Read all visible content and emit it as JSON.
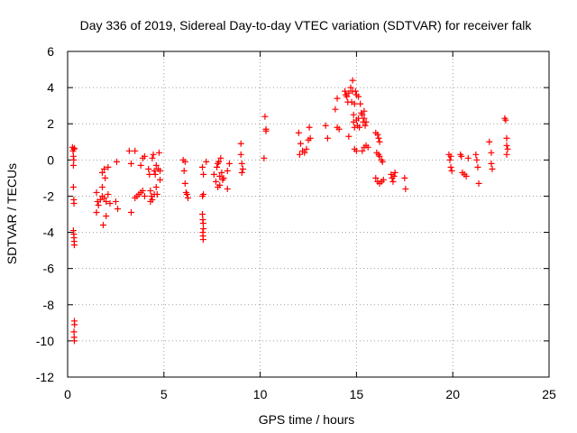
{
  "chart_data": {
    "type": "scatter",
    "title": "Day 336 of 2019, Sidereal Day-to-day VTEC variation (SDTVAR) for receiver falk",
    "xlabel": "GPS time / hours",
    "ylabel": "SDTVAR / TECUs",
    "xlim": [
      0,
      25
    ],
    "ylim": [
      -12,
      6
    ],
    "xticks": [
      0,
      5,
      10,
      15,
      20,
      25
    ],
    "yticks": [
      -12,
      -10,
      -8,
      -6,
      -4,
      -2,
      0,
      2,
      4,
      6
    ],
    "grid": true,
    "marker": "+",
    "marker_color": "#ff0000",
    "series": [
      {
        "name": "SDTVAR",
        "points": [
          [
            0.25,
            0.7
          ],
          [
            0.28,
            0.5
          ],
          [
            0.3,
            0.2
          ],
          [
            0.32,
            0.0
          ],
          [
            0.3,
            -0.3
          ],
          [
            0.33,
            0.6
          ],
          [
            0.35,
            0.65
          ],
          [
            0.3,
            -1.5
          ],
          [
            0.32,
            -2.2
          ],
          [
            0.33,
            -2.4
          ],
          [
            0.3,
            -3.9
          ],
          [
            0.32,
            -4.1
          ],
          [
            0.33,
            -4.3
          ],
          [
            0.34,
            -4.5
          ],
          [
            0.35,
            -4.7
          ],
          [
            0.35,
            -8.9
          ],
          [
            0.36,
            -9.1
          ],
          [
            0.33,
            -9.5
          ],
          [
            0.34,
            -9.8
          ],
          [
            0.35,
            -10.0
          ],
          [
            1.5,
            -1.8
          ],
          [
            1.55,
            -2.3
          ],
          [
            1.6,
            -2.5
          ],
          [
            1.5,
            -2.9
          ],
          [
            1.7,
            -2.2
          ],
          [
            1.8,
            -2.0
          ],
          [
            1.8,
            -1.5
          ],
          [
            1.8,
            -0.7
          ],
          [
            1.9,
            -0.5
          ],
          [
            1.95,
            -1.0
          ],
          [
            2.0,
            -2.3
          ],
          [
            1.9,
            -2.1
          ],
          [
            1.85,
            -3.6
          ],
          [
            2.0,
            -3.1
          ],
          [
            2.1,
            -1.9
          ],
          [
            2.1,
            -0.4
          ],
          [
            2.2,
            -2.4
          ],
          [
            2.5,
            -2.3
          ],
          [
            2.6,
            -2.7
          ],
          [
            2.55,
            -0.1
          ],
          [
            3.2,
            0.5
          ],
          [
            3.3,
            -0.2
          ],
          [
            3.5,
            0.5
          ],
          [
            3.3,
            -2.9
          ],
          [
            3.5,
            -2.1
          ],
          [
            3.6,
            -2.0
          ],
          [
            3.7,
            -1.9
          ],
          [
            3.8,
            -0.3
          ],
          [
            3.8,
            -1.8
          ],
          [
            3.9,
            0.1
          ],
          [
            3.9,
            -1.7
          ],
          [
            4.0,
            0.2
          ],
          [
            4.0,
            -2.0
          ],
          [
            4.2,
            -0.5
          ],
          [
            4.25,
            -0.8
          ],
          [
            4.3,
            -1.7
          ],
          [
            4.35,
            -2.0
          ],
          [
            4.4,
            -2.2
          ],
          [
            4.4,
            0.1
          ],
          [
            4.45,
            0.3
          ],
          [
            4.5,
            -0.6
          ],
          [
            4.55,
            -0.8
          ],
          [
            4.6,
            -1.5
          ],
          [
            4.65,
            -1.9
          ],
          [
            4.7,
            -0.5
          ],
          [
            4.75,
            0.4
          ],
          [
            4.8,
            -0.6
          ],
          [
            4.8,
            -1.1
          ],
          [
            4.3,
            -2.3
          ],
          [
            4.5,
            -1.9
          ],
          [
            4.6,
            -0.3
          ],
          [
            6.0,
            0.0
          ],
          [
            6.05,
            -0.6
          ],
          [
            6.1,
            -1.3
          ],
          [
            6.15,
            -1.8
          ],
          [
            6.2,
            -1.9
          ],
          [
            6.25,
            -2.1
          ],
          [
            6.1,
            -0.1
          ],
          [
            7.0,
            -0.4
          ],
          [
            7.05,
            -0.8
          ],
          [
            7.0,
            -2.0
          ],
          [
            7.05,
            -1.9
          ],
          [
            7.0,
            -3.0
          ],
          [
            7.02,
            -3.3
          ],
          [
            7.04,
            -3.5
          ],
          [
            7.05,
            -3.8
          ],
          [
            7.02,
            -4.0
          ],
          [
            7.03,
            -4.2
          ],
          [
            7.04,
            -4.4
          ],
          [
            7.2,
            -0.1
          ],
          [
            7.6,
            -0.8
          ],
          [
            7.7,
            -1.2
          ],
          [
            7.75,
            -0.4
          ],
          [
            7.8,
            -0.2
          ],
          [
            7.85,
            -0.1
          ],
          [
            7.9,
            -1.4
          ],
          [
            7.9,
            -0.9
          ],
          [
            7.95,
            0.1
          ],
          [
            8.0,
            -0.7
          ],
          [
            8.05,
            -1.1
          ],
          [
            8.1,
            -1.0
          ],
          [
            7.8,
            -1.5
          ],
          [
            8.3,
            -0.6
          ],
          [
            8.3,
            -1.6
          ],
          [
            8.4,
            -0.2
          ],
          [
            9.0,
            0.9
          ],
          [
            9.0,
            0.3
          ],
          [
            9.05,
            -0.2
          ],
          [
            9.1,
            -0.5
          ],
          [
            9.05,
            -0.7
          ],
          [
            10.25,
            2.4
          ],
          [
            10.3,
            1.7
          ],
          [
            10.3,
            1.6
          ],
          [
            10.2,
            0.1
          ],
          [
            12.0,
            1.5
          ],
          [
            12.1,
            0.9
          ],
          [
            12.05,
            0.3
          ],
          [
            12.2,
            0.5
          ],
          [
            12.3,
            0.4
          ],
          [
            12.4,
            0.6
          ],
          [
            12.5,
            1.1
          ],
          [
            12.6,
            1.2
          ],
          [
            12.55,
            1.8
          ],
          [
            13.4,
            1.9
          ],
          [
            13.5,
            1.2
          ],
          [
            13.9,
            2.8
          ],
          [
            14.0,
            3.4
          ],
          [
            14.1,
            1.7
          ],
          [
            14.0,
            1.8
          ],
          [
            14.4,
            3.8
          ],
          [
            14.45,
            3.6
          ],
          [
            14.5,
            3.5
          ],
          [
            14.55,
            3.2
          ],
          [
            14.6,
            3.7
          ],
          [
            14.6,
            1.3
          ],
          [
            14.7,
            4.0
          ],
          [
            14.75,
            3.2
          ],
          [
            14.8,
            4.4
          ],
          [
            14.8,
            3.8
          ],
          [
            14.85,
            2.5
          ],
          [
            14.85,
            2.1
          ],
          [
            14.9,
            3.1
          ],
          [
            14.9,
            1.8
          ],
          [
            14.95,
            3.8
          ],
          [
            15.0,
            3.6
          ],
          [
            15.0,
            2.2
          ],
          [
            15.05,
            1.9
          ],
          [
            15.1,
            3.5
          ],
          [
            15.1,
            2.3
          ],
          [
            15.15,
            1.8
          ],
          [
            15.2,
            3.1
          ],
          [
            15.25,
            2.6
          ],
          [
            15.3,
            2.5
          ],
          [
            15.35,
            2.1
          ],
          [
            15.4,
            2.7
          ],
          [
            15.4,
            2.3
          ],
          [
            15.45,
            1.9
          ],
          [
            15.5,
            2.1
          ],
          [
            14.9,
            0.6
          ],
          [
            15.0,
            0.5
          ],
          [
            15.3,
            0.5
          ],
          [
            15.4,
            0.7
          ],
          [
            15.5,
            0.8
          ],
          [
            15.6,
            0.7
          ],
          [
            16.0,
            1.5
          ],
          [
            16.1,
            1.4
          ],
          [
            16.15,
            1.2
          ],
          [
            16.2,
            1.0
          ],
          [
            16.05,
            0.4
          ],
          [
            16.15,
            0.3
          ],
          [
            16.2,
            0.2
          ],
          [
            16.3,
            0.0
          ],
          [
            16.35,
            -0.1
          ],
          [
            16.0,
            -1.0
          ],
          [
            16.1,
            -1.2
          ],
          [
            16.2,
            -1.3
          ],
          [
            16.3,
            -1.2
          ],
          [
            16.4,
            -1.1
          ],
          [
            16.8,
            -0.8
          ],
          [
            16.85,
            -1.0
          ],
          [
            16.9,
            -1.2
          ],
          [
            16.95,
            -0.9
          ],
          [
            17.0,
            -0.7
          ],
          [
            17.5,
            -1.0
          ],
          [
            17.55,
            -1.6
          ],
          [
            19.8,
            0.3
          ],
          [
            19.85,
            0.0
          ],
          [
            19.9,
            -0.4
          ],
          [
            19.95,
            -0.6
          ],
          [
            19.9,
            0.2
          ],
          [
            20.4,
            0.3
          ],
          [
            20.45,
            0.2
          ],
          [
            20.5,
            -0.7
          ],
          [
            20.6,
            -0.8
          ],
          [
            20.7,
            -0.9
          ],
          [
            20.8,
            0.1
          ],
          [
            21.2,
            0.3
          ],
          [
            21.25,
            0.0
          ],
          [
            21.3,
            -0.4
          ],
          [
            21.35,
            -1.3
          ],
          [
            21.9,
            1.0
          ],
          [
            22.0,
            0.4
          ],
          [
            22.0,
            -0.2
          ],
          [
            22.05,
            -0.5
          ],
          [
            22.7,
            2.3
          ],
          [
            22.75,
            2.2
          ],
          [
            22.8,
            1.2
          ],
          [
            22.8,
            0.8
          ],
          [
            22.85,
            0.6
          ],
          [
            22.8,
            0.3
          ]
        ]
      }
    ]
  }
}
